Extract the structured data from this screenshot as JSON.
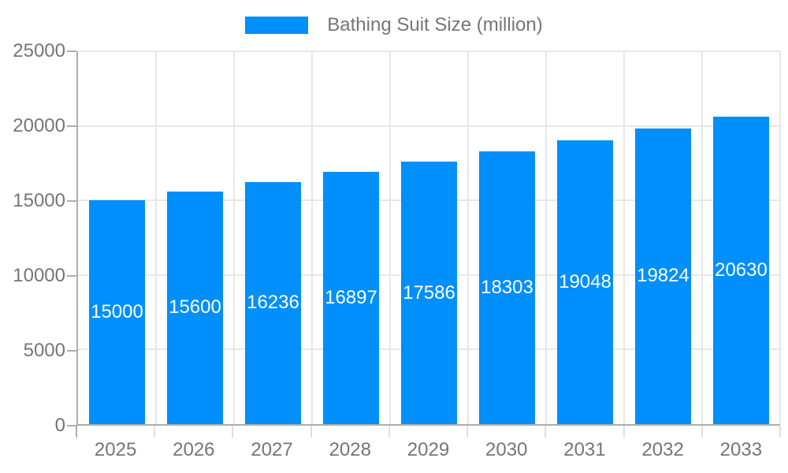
{
  "chart_data": {
    "type": "bar",
    "title": "Bathing Suit Size (million)",
    "xlabel": "",
    "ylabel": "",
    "categories": [
      "2025",
      "2026",
      "2027",
      "2028",
      "2029",
      "2030",
      "2031",
      "2032",
      "2033"
    ],
    "series": [
      {
        "name": "Bathing Suit Size (million)",
        "values": [
          15000,
          15600,
          16236,
          16897,
          17586,
          18303,
          19048,
          19824,
          20630
        ]
      }
    ],
    "ylim": [
      0,
      25000
    ],
    "yticks": [
      0,
      5000,
      10000,
      15000,
      20000,
      25000
    ],
    "grid": true,
    "legend_position": "top-center",
    "value_labels": "inside-middle",
    "colors": {
      "bar": "#008ffb",
      "value_label": "#ffffff",
      "axis_text": "#757575",
      "grid_line": "#e7e7e7",
      "axis_line": "#adadad"
    }
  }
}
